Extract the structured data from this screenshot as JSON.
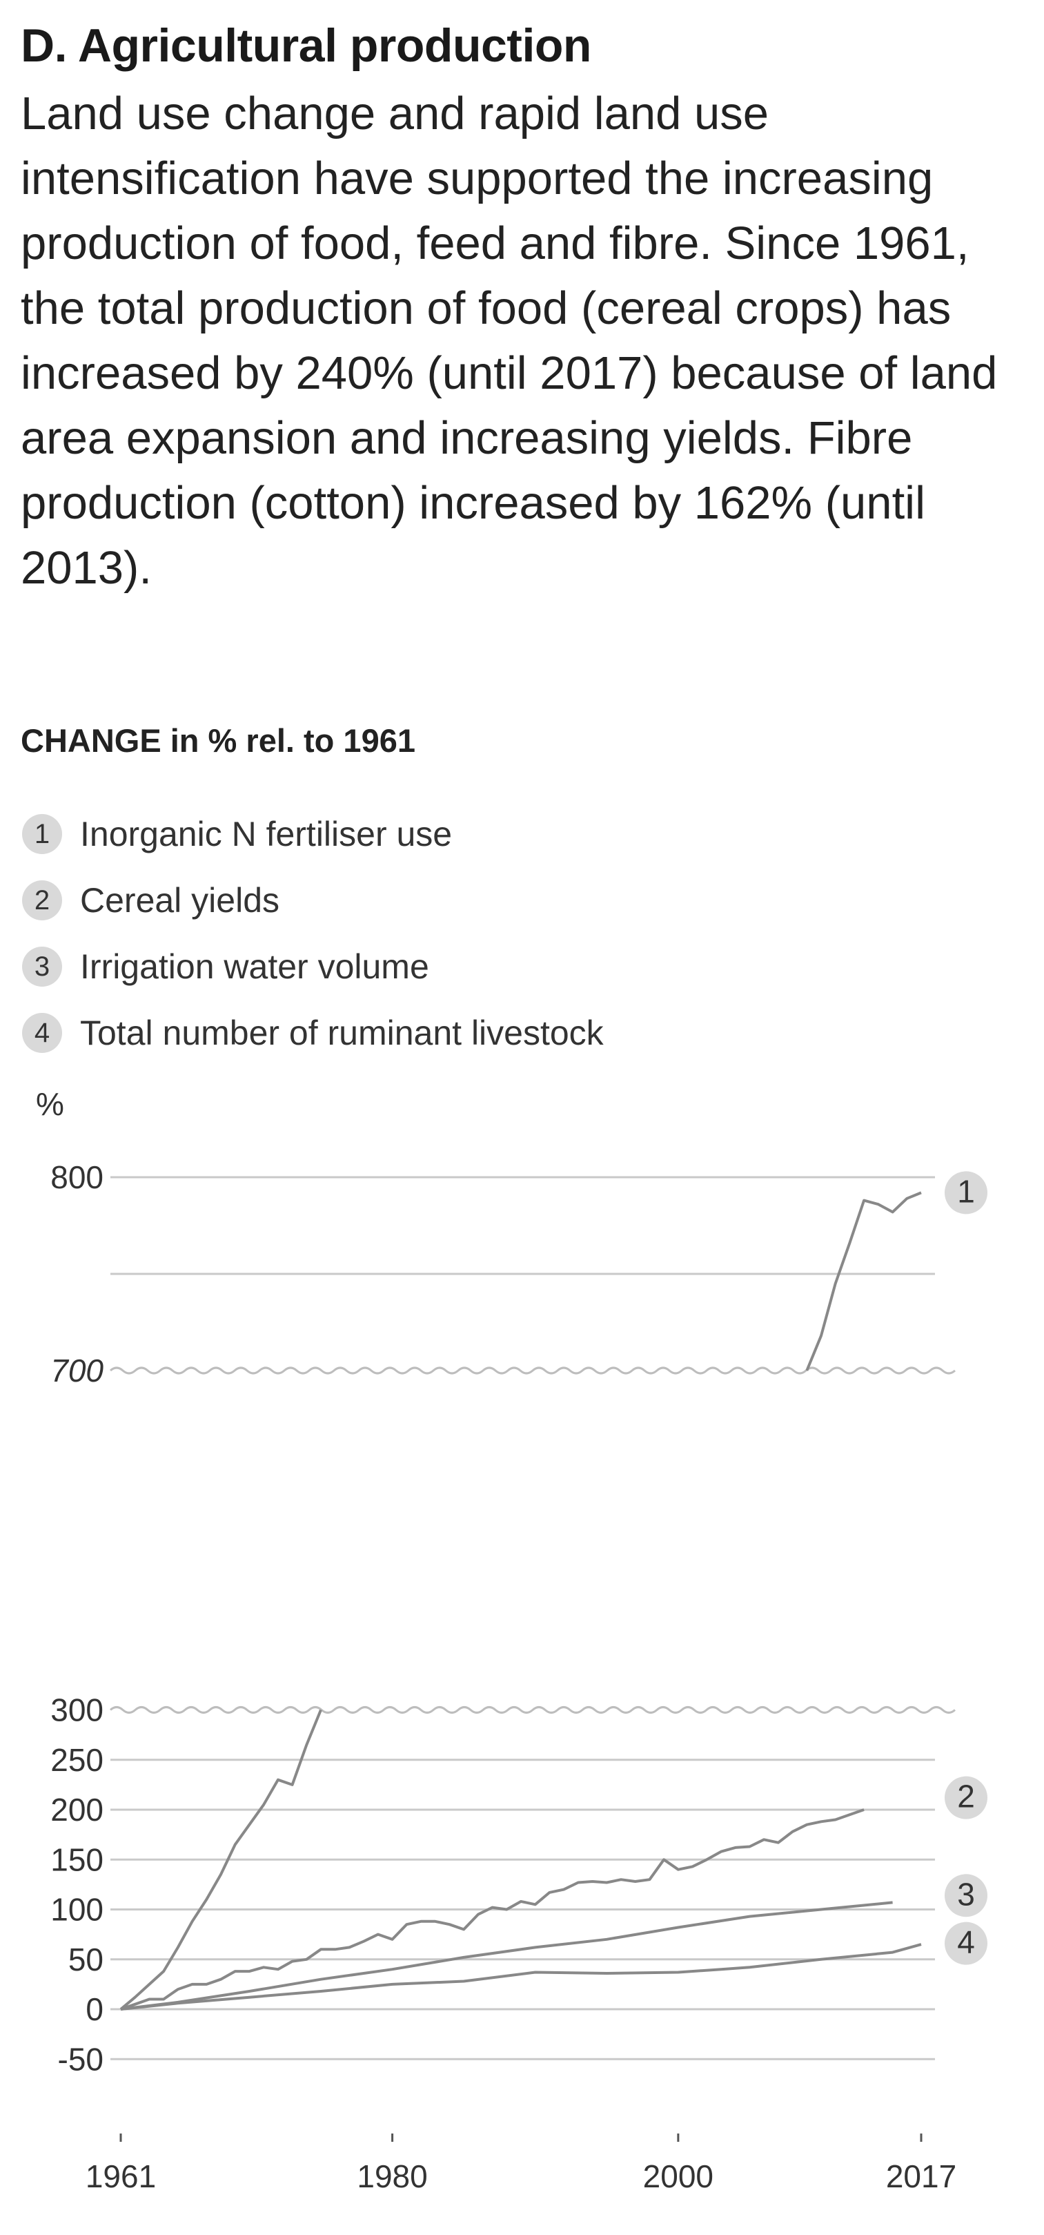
{
  "panel": {
    "title": "D. Agricultural production",
    "text": "Land use change and rapid land use intensification have supported the increasing production of food, feed and fibre. Since 1961, the total production of food (cereal crops) has increased by 240% (until 2017) because of land area expansion and increasing yields. Fibre production (cotton) increased by 162% (until 2013)."
  },
  "chart_data": {
    "type": "line",
    "title": "CHANGE in % rel. to 1961",
    "ylabel": "%",
    "xlabel": "",
    "xlim": [
      1961,
      2017
    ],
    "x_ticks": [
      1961,
      1980,
      2000,
      2017
    ],
    "y_ticks": [
      "800",
      "700",
      "300",
      "250",
      "200",
      "150",
      "100",
      "50",
      "0",
      "-50"
    ],
    "y_ticks_italic": [
      "700"
    ],
    "axis_break": {
      "lower_top": 300,
      "upper_bottom": 700,
      "upper_top": 800
    },
    "grid": true,
    "line_color": "#888888",
    "badge_color": "#d9d9d9",
    "series": [
      {
        "id": "1",
        "name": "Inorganic N fertiliser use",
        "x": [
          1961,
          1962,
          1963,
          1964,
          1965,
          1966,
          1967,
          1968,
          1969,
          1970,
          1971,
          1972,
          1973,
          1974,
          1975,
          1976,
          1977,
          2009,
          2010,
          2011,
          2012,
          2013,
          2014,
          2015,
          2016,
          2017
        ],
        "y": [
          0,
          12,
          25,
          38,
          62,
          88,
          110,
          135,
          165,
          185,
          205,
          230,
          225,
          265,
          300,
          null,
          null,
          700,
          718,
          745,
          766,
          788,
          786,
          782,
          789,
          792
        ]
      },
      {
        "id": "2",
        "name": "Cereal yields",
        "x": [
          1961,
          1962,
          1963,
          1964,
          1965,
          1966,
          1967,
          1968,
          1969,
          1970,
          1971,
          1972,
          1973,
          1974,
          1975,
          1976,
          1977,
          1978,
          1979,
          1980,
          1981,
          1982,
          1983,
          1984,
          1985,
          1986,
          1987,
          1988,
          1989,
          1990,
          1991,
          1992,
          1993,
          1994,
          1995,
          1996,
          1997,
          1998,
          1999,
          2000,
          2001,
          2002,
          2003,
          2004,
          2005,
          2006,
          2007,
          2008,
          2009,
          2010,
          2011,
          2012,
          2013,
          2014,
          2015,
          2016,
          2017
        ],
        "y": [
          0,
          5,
          10,
          10,
          20,
          25,
          25,
          30,
          38,
          38,
          42,
          40,
          48,
          50,
          60,
          60,
          62,
          68,
          75,
          70,
          85,
          88,
          88,
          85,
          80,
          95,
          102,
          100,
          108,
          105,
          117,
          120,
          127,
          128,
          127,
          130,
          128,
          130,
          150,
          140,
          143,
          150,
          158,
          162,
          163,
          170,
          167,
          178,
          185,
          188,
          190,
          195,
          200,
          null,
          null,
          null,
          null
        ]
      },
      {
        "id": "3",
        "name": "Irrigation water volume",
        "x": [
          1961,
          1965,
          1970,
          1975,
          1980,
          1985,
          1990,
          1995,
          2000,
          2005,
          2010,
          2015
        ],
        "y": [
          0,
          7,
          18,
          30,
          40,
          52,
          62,
          70,
          82,
          93,
          100,
          107
        ]
      },
      {
        "id": "4",
        "name": "Total number of ruminant livestock",
        "x": [
          1961,
          1965,
          1970,
          1975,
          1980,
          1985,
          1990,
          1995,
          2000,
          2003,
          2005,
          2010,
          2015,
          2017
        ],
        "y": [
          0,
          6,
          12,
          18,
          25,
          28,
          37,
          36,
          37,
          40,
          42,
          50,
          57,
          65
        ]
      }
    ]
  }
}
